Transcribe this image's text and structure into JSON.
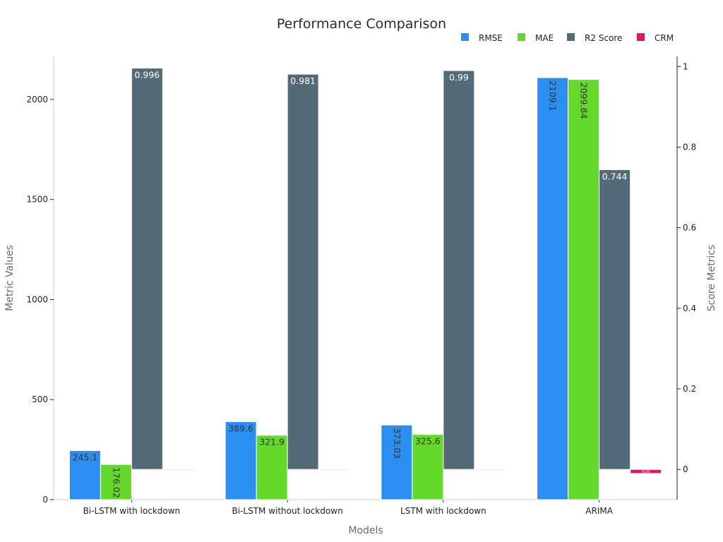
{
  "chart_data": {
    "type": "bar",
    "title": "Performance Comparison",
    "xlabel": "Models",
    "ylabel": "Metric Values",
    "y2label": "Score Metrics",
    "categories": [
      "Bi-LSTM with lockdown",
      "Bi-LSTM without lockdown",
      "LSTM with lockdown",
      "ARIMA"
    ],
    "series": [
      {
        "name": "RMSE",
        "axis": "left",
        "color": "#2b8ff2",
        "values": [
          245.1,
          389.6,
          373.03,
          2109.1
        ],
        "labels": [
          "245.1",
          "389.6",
          "373.03",
          "2109.1"
        ],
        "label_rotated": [
          false,
          false,
          true,
          true
        ]
      },
      {
        "name": "MAE",
        "axis": "left",
        "color": "#64d929",
        "values": [
          176.02,
          321.9,
          325.6,
          2099.84
        ],
        "labels": [
          "176.02",
          "321.9",
          "325.6",
          "2099.84"
        ],
        "label_rotated": [
          true,
          false,
          false,
          true
        ]
      },
      {
        "name": "R2 Score",
        "axis": "right",
        "color": "#536b76",
        "values": [
          0.996,
          0.981,
          0.99,
          0.744
        ],
        "labels": [
          "0.996",
          "0.981",
          "0.99",
          "0.744"
        ],
        "label_rotated": [
          false,
          false,
          false,
          false
        ]
      },
      {
        "name": "CRM",
        "axis": "right",
        "color": "#e0185a",
        "values": [
          0,
          0,
          0,
          -0.01
        ],
        "labels": [
          "",
          "",
          "",
          "-0.01"
        ],
        "label_rotated": [
          false,
          false,
          false,
          false
        ]
      }
    ],
    "ylim": [
      0,
      2215
    ],
    "y2lim": [
      -0.075,
      1.025
    ],
    "yticks": [
      0,
      500,
      1000,
      1500,
      2000
    ],
    "y2ticks": [
      0,
      0.2,
      0.4,
      0.6,
      0.8,
      1
    ],
    "legend_position": "top-right",
    "grid": false
  }
}
